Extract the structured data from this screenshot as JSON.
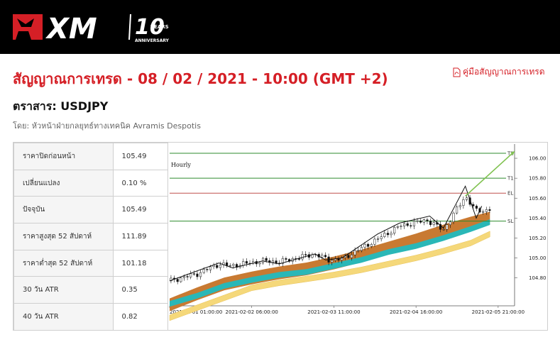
{
  "brand": {
    "logo_text": "XM",
    "anniversary_number": "10",
    "anniversary_word": "YEARS",
    "anniversary_sub": "ANNIVERSARY"
  },
  "page": {
    "title": "สัญญาณการเทรด - 08 / 02 / 2021 - 10:00 (GMT +2)",
    "guide_link": "คู่มือสัญญาณการเทรด",
    "instrument": "ตราสาร: USDJPY",
    "author": "โดย: หัวหน้าฝ่ายกลยุทธ์ทางเทคนิค Avramis Despotis"
  },
  "stats": [
    {
      "label": "ราคาปิดก่อนหน้า",
      "value": "105.49"
    },
    {
      "label": "เปลี่ยนแปลง",
      "value": "0.10 %"
    },
    {
      "label": "ปัจจุบัน",
      "value": "105.49"
    },
    {
      "label": "ราคาสูงสุด 52 สัปดาห์",
      "value": "111.89"
    },
    {
      "label": "ราคาต่ำสุด 52 สัปดาห์",
      "value": "101.18"
    },
    {
      "label": "30 วัน ATR",
      "value": "0.35"
    },
    {
      "label": "40 วัน ATR",
      "value": "0.82"
    }
  ],
  "colors": {
    "brand_red": "#d51f26",
    "target_line": "#2e8b2e",
    "entry_line": "#c0504d",
    "band_orange": "#c87a32",
    "band_teal": "#2ab7b7",
    "band_yellow": "#f5d87a",
    "arrow": "#7fc24f"
  },
  "chart_data": {
    "type": "line",
    "timeframe": "Hourly",
    "x_tick_labels": [
      "2021-02-01 01:00:00",
      "2021-02-02 06:00:00",
      "2021-02-03 11:00:00",
      "2021-02-04 16:00:00",
      "2021-02-05 21:00:00"
    ],
    "y_ticks": [
      104.8,
      105.0,
      105.2,
      105.4,
      105.6,
      105.8,
      106.0
    ],
    "ylim": [
      104.52,
      106.1
    ],
    "levels": [
      {
        "name": "T2",
        "value": 106.05
      },
      {
        "name": "T1",
        "value": 105.8
      },
      {
        "name": "EL",
        "value": 105.65
      },
      {
        "name": "SL",
        "value": 105.37
      }
    ],
    "price_path": {
      "t": [
        0,
        10,
        18,
        22,
        34,
        40,
        53,
        58,
        63,
        76,
        84,
        94,
        100,
        108,
        112,
        116,
        117
      ],
      "price": [
        104.77,
        104.84,
        104.94,
        104.92,
        104.97,
        104.96,
        105.04,
        104.98,
        104.99,
        105.19,
        105.32,
        105.38,
        105.28,
        105.62,
        105.47,
        105.48,
        105.49
      ]
    },
    "zigzag": {
      "t": [
        0,
        18,
        23,
        34,
        40,
        53,
        57,
        63,
        76,
        84,
        95,
        100,
        108,
        112,
        114
      ],
      "price": [
        104.77,
        104.95,
        104.9,
        104.97,
        104.94,
        105.04,
        104.98,
        105.0,
        105.24,
        105.35,
        105.42,
        105.3,
        105.72,
        105.4,
        105.52
      ]
    },
    "bands": {
      "t": [
        0,
        10,
        20,
        30,
        40,
        50,
        60,
        70,
        80,
        90,
        100,
        110,
        117
      ],
      "orange": [
        104.53,
        104.64,
        104.74,
        104.8,
        104.85,
        104.89,
        104.95,
        105.02,
        105.1,
        105.18,
        105.27,
        105.35,
        105.4
      ],
      "teal": [
        104.54,
        104.62,
        104.72,
        104.78,
        104.83,
        104.86,
        104.92,
        104.98,
        105.06,
        105.12,
        105.2,
        105.29,
        105.36
      ],
      "yellow": [
        104.4,
        104.5,
        104.6,
        104.7,
        104.75,
        104.79,
        104.83,
        104.88,
        104.94,
        105.0,
        105.07,
        105.15,
        105.24
      ]
    },
    "projection_arrow": {
      "t": [
        108,
        126
      ],
      "price": [
        105.62,
        106.07
      ]
    }
  }
}
